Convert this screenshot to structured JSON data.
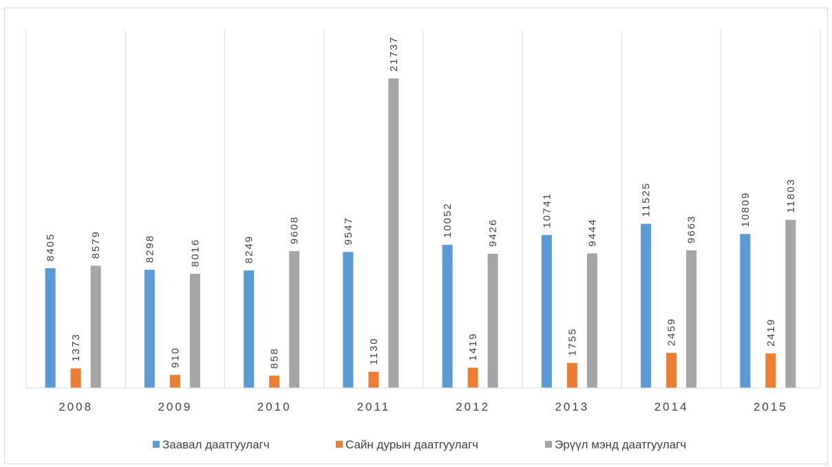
{
  "chart_data": {
    "type": "bar",
    "categories": [
      "2008",
      "2009",
      "2010",
      "2011",
      "2012",
      "2013",
      "2014",
      "2015"
    ],
    "series": [
      {
        "name": "Заавал даатгуулагч",
        "color": "#5b9bd5",
        "values": [
          8405,
          8298,
          8249,
          9547,
          10052,
          10741,
          11525,
          10809
        ]
      },
      {
        "name": "Сайн дурын даатгуулагч",
        "color": "#ed7d31",
        "values": [
          1373,
          910,
          858,
          1130,
          1419,
          1755,
          2459,
          2419
        ]
      },
      {
        "name": "Эрүүл мэнд даатгуулагч",
        "color": "#a5a5a5",
        "values": [
          8579,
          8016,
          9608,
          21737,
          9426,
          9444,
          9663,
          11803
        ]
      }
    ],
    "title": "",
    "xlabel": "",
    "ylabel": "",
    "ylim": [
      0,
      23000
    ],
    "grid": "vertical category separators",
    "legend_position": "bottom",
    "data_labels": "vertical, above bars"
  }
}
